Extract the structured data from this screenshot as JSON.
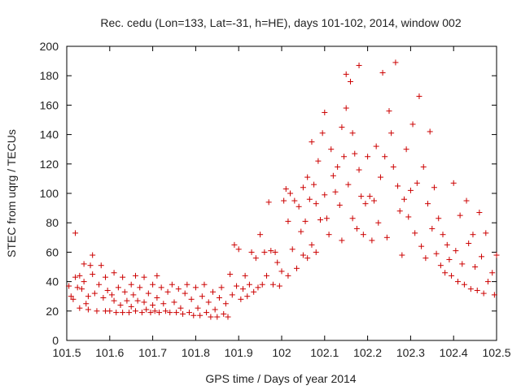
{
  "chart_data": {
    "type": "scatter",
    "title": "Rec. cedu (Lon=133, Lat=-31, h=HE), days 101-102, 2014, window 002",
    "xlabel": "GPS time / Days of year 2014",
    "ylabel": "STEC from uqrg / TECUs",
    "xlim": [
      101.5,
      102.5
    ],
    "ylim": [
      0,
      200
    ],
    "xticks": [
      "101.5",
      "101.6",
      "101.7",
      "101.8",
      "101.9",
      "102",
      "102.1",
      "102.2",
      "102.3",
      "102.4",
      "102.5"
    ],
    "yticks": [
      "0",
      "20",
      "40",
      "60",
      "80",
      "100",
      "120",
      "140",
      "160",
      "180",
      "200"
    ],
    "grid": false,
    "marker": "plus",
    "color": "#cc0000",
    "series": [
      {
        "points": [
          [
            101.505,
            37
          ],
          [
            101.51,
            30
          ],
          [
            101.515,
            28
          ],
          [
            101.52,
            73
          ],
          [
            101.52,
            43
          ],
          [
            101.525,
            36
          ],
          [
            101.53,
            44
          ],
          [
            101.53,
            22
          ],
          [
            101.535,
            35
          ],
          [
            101.54,
            52
          ],
          [
            101.54,
            40
          ],
          [
            101.545,
            25
          ],
          [
            101.55,
            30
          ],
          [
            101.55,
            21
          ],
          [
            101.555,
            51
          ],
          [
            101.56,
            58
          ],
          [
            101.56,
            45
          ],
          [
            101.565,
            32
          ],
          [
            101.57,
            20
          ],
          [
            101.575,
            38
          ],
          [
            101.58,
            51
          ],
          [
            101.585,
            29
          ],
          [
            101.59,
            43
          ],
          [
            101.59,
            20
          ],
          [
            101.595,
            34
          ],
          [
            101.6,
            20
          ],
          [
            101.605,
            31
          ],
          [
            101.61,
            46
          ],
          [
            101.61,
            27
          ],
          [
            101.615,
            19
          ],
          [
            101.62,
            36
          ],
          [
            101.625,
            24
          ],
          [
            101.63,
            43
          ],
          [
            101.63,
            19
          ],
          [
            101.635,
            33
          ],
          [
            101.64,
            27
          ],
          [
            101.645,
            19
          ],
          [
            101.65,
            38
          ],
          [
            101.65,
            23
          ],
          [
            101.655,
            31
          ],
          [
            101.66,
            44
          ],
          [
            101.66,
            20
          ],
          [
            101.665,
            27
          ],
          [
            101.67,
            36
          ],
          [
            101.675,
            19
          ],
          [
            101.68,
            43
          ],
          [
            101.68,
            26
          ],
          [
            101.685,
            21
          ],
          [
            101.69,
            32
          ],
          [
            101.695,
            19
          ],
          [
            101.7,
            38
          ],
          [
            101.7,
            24
          ],
          [
            101.705,
            20
          ],
          [
            101.71,
            44
          ],
          [
            101.71,
            29
          ],
          [
            101.715,
            19
          ],
          [
            101.72,
            36
          ],
          [
            101.725,
            25
          ],
          [
            101.73,
            20
          ],
          [
            101.735,
            33
          ],
          [
            101.74,
            19
          ],
          [
            101.745,
            38
          ],
          [
            101.75,
            26
          ],
          [
            101.755,
            19
          ],
          [
            101.76,
            35
          ],
          [
            101.765,
            22
          ],
          [
            101.77,
            18
          ],
          [
            101.775,
            32
          ],
          [
            101.78,
            38
          ],
          [
            101.785,
            19
          ],
          [
            101.79,
            28
          ],
          [
            101.795,
            17
          ],
          [
            101.8,
            36
          ],
          [
            101.805,
            22
          ],
          [
            101.81,
            17
          ],
          [
            101.815,
            30
          ],
          [
            101.82,
            38
          ],
          [
            101.825,
            19
          ],
          [
            101.83,
            26
          ],
          [
            101.835,
            16
          ],
          [
            101.84,
            33
          ],
          [
            101.845,
            21
          ],
          [
            101.85,
            16
          ],
          [
            101.855,
            29
          ],
          [
            101.86,
            36
          ],
          [
            101.865,
            18
          ],
          [
            101.87,
            25
          ],
          [
            101.875,
            16
          ],
          [
            101.88,
            45
          ],
          [
            101.885,
            31
          ],
          [
            101.89,
            65
          ],
          [
            101.895,
            37
          ],
          [
            101.9,
            62
          ],
          [
            101.905,
            28
          ],
          [
            101.91,
            35
          ],
          [
            101.915,
            44
          ],
          [
            101.92,
            30
          ],
          [
            101.925,
            38
          ],
          [
            101.93,
            60
          ],
          [
            101.935,
            33
          ],
          [
            101.94,
            56
          ],
          [
            101.945,
            36
          ],
          [
            101.95,
            72
          ],
          [
            101.955,
            38
          ],
          [
            101.96,
            60
          ],
          [
            101.965,
            44
          ],
          [
            101.97,
            94
          ],
          [
            101.975,
            61
          ],
          [
            101.98,
            38
          ],
          [
            101.985,
            60
          ],
          [
            101.99,
            53
          ],
          [
            101.995,
            37
          ],
          [
            102.0,
            47
          ],
          [
            102.005,
            95
          ],
          [
            102.01,
            103
          ],
          [
            102.015,
            81
          ],
          [
            102.015,
            44
          ],
          [
            102.02,
            100
          ],
          [
            102.025,
            62
          ],
          [
            102.03,
            95
          ],
          [
            102.035,
            49
          ],
          [
            102.04,
            91
          ],
          [
            102.045,
            74
          ],
          [
            102.05,
            104
          ],
          [
            102.05,
            58
          ],
          [
            102.055,
            81
          ],
          [
            102.06,
            111
          ],
          [
            102.06,
            56
          ],
          [
            102.065,
            96
          ],
          [
            102.07,
            135
          ],
          [
            102.07,
            65
          ],
          [
            102.075,
            106
          ],
          [
            102.08,
            93
          ],
          [
            102.08,
            60
          ],
          [
            102.085,
            122
          ],
          [
            102.09,
            82
          ],
          [
            102.095,
            141
          ],
          [
            102.1,
            155
          ],
          [
            102.1,
            99
          ],
          [
            102.105,
            83
          ],
          [
            102.11,
            72
          ],
          [
            102.115,
            130
          ],
          [
            102.12,
            112
          ],
          [
            102.125,
            101
          ],
          [
            102.13,
            118
          ],
          [
            102.135,
            92
          ],
          [
            102.14,
            145
          ],
          [
            102.14,
            68
          ],
          [
            102.145,
            125
          ],
          [
            102.15,
            181
          ],
          [
            102.15,
            158
          ],
          [
            102.155,
            106
          ],
          [
            102.16,
            176
          ],
          [
            102.165,
            141
          ],
          [
            102.165,
            83
          ],
          [
            102.17,
            127
          ],
          [
            102.175,
            76
          ],
          [
            102.18,
            187
          ],
          [
            102.18,
            116
          ],
          [
            102.185,
            98
          ],
          [
            102.19,
            72
          ],
          [
            102.195,
            93
          ],
          [
            102.2,
            125
          ],
          [
            102.205,
            98
          ],
          [
            102.21,
            68
          ],
          [
            102.215,
            95
          ],
          [
            102.22,
            132
          ],
          [
            102.225,
            80
          ],
          [
            102.23,
            111
          ],
          [
            102.235,
            182
          ],
          [
            102.24,
            125
          ],
          [
            102.245,
            70
          ],
          [
            102.25,
            156
          ],
          [
            102.255,
            141
          ],
          [
            102.26,
            118
          ],
          [
            102.265,
            189
          ],
          [
            102.27,
            105
          ],
          [
            102.275,
            88
          ],
          [
            102.28,
            58
          ],
          [
            102.285,
            96
          ],
          [
            102.29,
            130
          ],
          [
            102.295,
            84
          ],
          [
            102.3,
            102
          ],
          [
            102.305,
            147
          ],
          [
            102.31,
            73
          ],
          [
            102.315,
            107
          ],
          [
            102.32,
            166
          ],
          [
            102.325,
            64
          ],
          [
            102.33,
            118
          ],
          [
            102.335,
            56
          ],
          [
            102.34,
            93
          ],
          [
            102.345,
            142
          ],
          [
            102.35,
            76
          ],
          [
            102.355,
            104
          ],
          [
            102.36,
            59
          ],
          [
            102.365,
            83
          ],
          [
            102.37,
            51
          ],
          [
            102.375,
            72
          ],
          [
            102.38,
            46
          ],
          [
            102.385,
            65
          ],
          [
            102.39,
            55
          ],
          [
            102.395,
            44
          ],
          [
            102.4,
            107
          ],
          [
            102.405,
            61
          ],
          [
            102.41,
            40
          ],
          [
            102.415,
            85
          ],
          [
            102.42,
            52
          ],
          [
            102.425,
            38
          ],
          [
            102.43,
            95
          ],
          [
            102.435,
            66
          ],
          [
            102.44,
            35
          ],
          [
            102.445,
            72
          ],
          [
            102.45,
            50
          ],
          [
            102.455,
            34
          ],
          [
            102.46,
            87
          ],
          [
            102.465,
            57
          ],
          [
            102.47,
            32
          ],
          [
            102.475,
            73
          ],
          [
            102.48,
            40
          ],
          [
            102.49,
            46
          ],
          [
            102.495,
            31
          ],
          [
            102.5,
            58
          ]
        ]
      }
    ]
  }
}
